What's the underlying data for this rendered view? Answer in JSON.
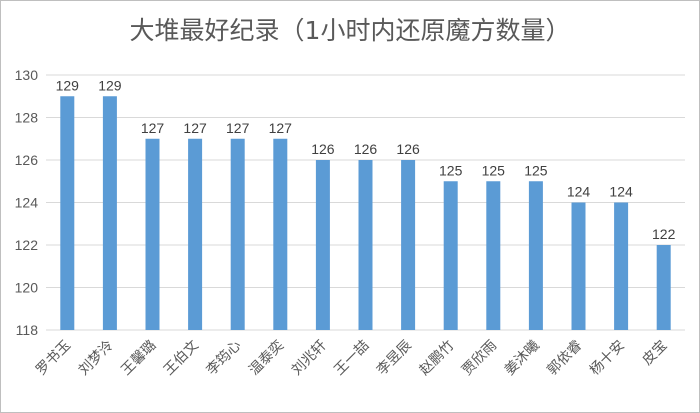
{
  "chart_data": {
    "type": "bar",
    "title": "大堆最好纪录（1小时内还原魔方数量）",
    "xlabel": "",
    "ylabel": "",
    "categories": [
      "罗书玉",
      "刘梦泠",
      "王馨璐",
      "王伯文",
      "李筠心",
      "温泰奕",
      "刘兆轩",
      "王一喆",
      "李昱辰",
      "赵鹏竹",
      "贾欣雨",
      "姜沐曦",
      "郭依睿",
      "杨十安",
      "皮宝"
    ],
    "values": [
      129,
      129,
      127,
      127,
      127,
      127,
      126,
      126,
      126,
      125,
      125,
      125,
      124,
      124,
      122
    ],
    "ylim": [
      118,
      130
    ],
    "yticks": [
      118,
      120,
      122,
      124,
      126,
      128,
      130
    ],
    "grid": true,
    "bar_color": "#5b9bd5",
    "data_labels": true
  }
}
